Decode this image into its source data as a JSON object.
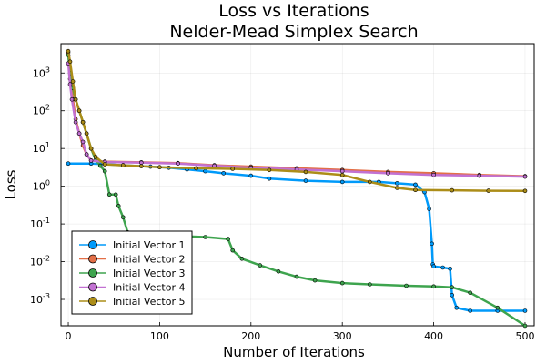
{
  "chart_data": {
    "type": "line",
    "title_lines": [
      "Loss vs Iterations",
      "Nelder-Mead Simplex Search"
    ],
    "xlabel": "Number of Iterations",
    "ylabel": "Loss",
    "xlim": [
      -8,
      510
    ],
    "ylim": [
      0.0002,
      6000
    ],
    "yscale": "log",
    "grid": true,
    "legend_position": "bottom-left",
    "x_ticks": [
      0,
      100,
      200,
      300,
      400,
      500
    ],
    "y_ticks": [
      {
        "value": 0.001,
        "base": "10",
        "exp": "-3"
      },
      {
        "value": 0.01,
        "base": "10",
        "exp": "-2"
      },
      {
        "value": 0.1,
        "base": "10",
        "exp": "-1"
      },
      {
        "value": 1,
        "base": "10",
        "exp": "0"
      },
      {
        "value": 10,
        "base": "10",
        "exp": "1"
      },
      {
        "value": 100,
        "base": "10",
        "exp": "2"
      },
      {
        "value": 1000,
        "base": "10",
        "exp": "3"
      }
    ],
    "series": [
      {
        "name": "Initial Vector 1",
        "color": "#009AFA",
        "points": [
          [
            0,
            4
          ],
          [
            25,
            4
          ],
          [
            35,
            3.9
          ],
          [
            60,
            3.6
          ],
          [
            90,
            3.3
          ],
          [
            110,
            3.1
          ],
          [
            130,
            2.8
          ],
          [
            150,
            2.5
          ],
          [
            170,
            2.2
          ],
          [
            200,
            1.9
          ],
          [
            220,
            1.6
          ],
          [
            260,
            1.4
          ],
          [
            300,
            1.3
          ],
          [
            340,
            1.3
          ],
          [
            360,
            1.2
          ],
          [
            380,
            1.1
          ],
          [
            390,
            0.7
          ],
          [
            395,
            0.25
          ],
          [
            398,
            0.03
          ],
          [
            399,
            0.0085
          ],
          [
            400,
            0.0075
          ],
          [
            410,
            0.007
          ],
          [
            418,
            0.0065
          ],
          [
            420,
            0.0013
          ],
          [
            425,
            0.0006
          ],
          [
            440,
            0.0005
          ],
          [
            470,
            0.0005
          ],
          [
            500,
            0.0005
          ]
        ]
      },
      {
        "name": "Initial Vector 2",
        "color": "#E36F47",
        "points": [
          [
            0,
            3500
          ],
          [
            2,
            700
          ],
          [
            5,
            200
          ],
          [
            8,
            60
          ],
          [
            12,
            25
          ],
          [
            16,
            12
          ],
          [
            20,
            7
          ],
          [
            25,
            4.8
          ],
          [
            40,
            4.5
          ],
          [
            80,
            4.3
          ],
          [
            120,
            4.1
          ],
          [
            160,
            3.6
          ],
          [
            200,
            3.3
          ],
          [
            250,
            3
          ],
          [
            300,
            2.7
          ],
          [
            350,
            2.4
          ],
          [
            400,
            2.2
          ],
          [
            450,
            2
          ],
          [
            500,
            1.85
          ]
        ]
      },
      {
        "name": "Initial Vector 3",
        "color": "#3EA44E",
        "points": [
          [
            0,
            3000
          ],
          [
            2,
            1000
          ],
          [
            5,
            400
          ],
          [
            8,
            200
          ],
          [
            12,
            100
          ],
          [
            16,
            50
          ],
          [
            20,
            25
          ],
          [
            25,
            10
          ],
          [
            30,
            5
          ],
          [
            35,
            3.5
          ],
          [
            40,
            2.5
          ],
          [
            45,
            0.6
          ],
          [
            52,
            0.6
          ],
          [
            55,
            0.3
          ],
          [
            60,
            0.15
          ],
          [
            65,
            0.06
          ],
          [
            80,
            0.055
          ],
          [
            100,
            0.05
          ],
          [
            150,
            0.045
          ],
          [
            175,
            0.04
          ],
          [
            180,
            0.02
          ],
          [
            190,
            0.012
          ],
          [
            210,
            0.008
          ],
          [
            230,
            0.0055
          ],
          [
            250,
            0.004
          ],
          [
            270,
            0.0032
          ],
          [
            300,
            0.0027
          ],
          [
            330,
            0.0025
          ],
          [
            370,
            0.0023
          ],
          [
            400,
            0.0022
          ],
          [
            420,
            0.0021
          ],
          [
            440,
            0.0015
          ],
          [
            470,
            0.0006
          ],
          [
            500,
            0.0002
          ]
        ]
      },
      {
        "name": "Initial Vector 4",
        "color": "#C271D2",
        "points": [
          [
            0,
            1800
          ],
          [
            2,
            500
          ],
          [
            4,
            200
          ],
          [
            8,
            50
          ],
          [
            12,
            25
          ],
          [
            16,
            15
          ],
          [
            20,
            7
          ],
          [
            25,
            4.8
          ],
          [
            40,
            4.4
          ],
          [
            80,
            4.2
          ],
          [
            120,
            4
          ],
          [
            160,
            3.5
          ],
          [
            200,
            3.1
          ],
          [
            250,
            2.8
          ],
          [
            300,
            2.5
          ],
          [
            350,
            2.2
          ],
          [
            400,
            2
          ],
          [
            450,
            1.9
          ],
          [
            500,
            1.8
          ]
        ]
      },
      {
        "name": "Initial Vector 5",
        "color": "#AC8D18",
        "points": [
          [
            0,
            3800
          ],
          [
            2,
            2000
          ],
          [
            5,
            600
          ],
          [
            8,
            200
          ],
          [
            12,
            100
          ],
          [
            16,
            50
          ],
          [
            20,
            25
          ],
          [
            25,
            10
          ],
          [
            30,
            6
          ],
          [
            40,
            3.8
          ],
          [
            60,
            3.6
          ],
          [
            80,
            3.4
          ],
          [
            100,
            3.2
          ],
          [
            140,
            3
          ],
          [
            180,
            2.9
          ],
          [
            220,
            2.7
          ],
          [
            260,
            2.4
          ],
          [
            300,
            2
          ],
          [
            330,
            1.3
          ],
          [
            360,
            0.9
          ],
          [
            380,
            0.8
          ],
          [
            420,
            0.78
          ],
          [
            460,
            0.76
          ],
          [
            500,
            0.75
          ]
        ]
      }
    ]
  }
}
